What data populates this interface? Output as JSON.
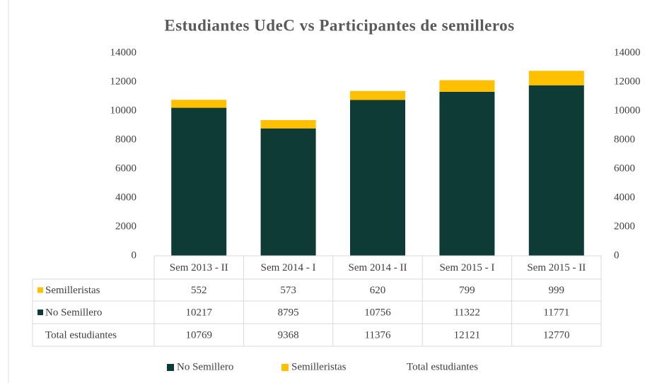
{
  "chart_data": {
    "type": "bar",
    "stacked": true,
    "title": "Estudiantes UdeC vs Participantes de semilleros",
    "categories": [
      "Sem 2013 - II",
      "Sem 2014 - I",
      "Sem 2014 - II",
      "Sem 2015 - I",
      "Sem 2015 - II"
    ],
    "series": [
      {
        "name": "No Semillero",
        "color": "#0f3b36",
        "values": [
          10217,
          8795,
          10756,
          11322,
          11771
        ]
      },
      {
        "name": "Semilleristas",
        "color": "#ffc000",
        "values": [
          552,
          573,
          620,
          799,
          999
        ]
      },
      {
        "name": "Total estudiantes",
        "values": [
          10769,
          9368,
          11376,
          12121,
          12770
        ]
      }
    ],
    "ylim": [
      0,
      14000
    ],
    "yticks": [
      0,
      2000,
      4000,
      6000,
      8000,
      10000,
      12000,
      14000
    ],
    "y2lim": [
      0,
      14000
    ],
    "y2ticks": [
      0,
      2000,
      4000,
      6000,
      8000,
      10000,
      12000,
      14000
    ],
    "grid": false,
    "legend": "bottom"
  }
}
